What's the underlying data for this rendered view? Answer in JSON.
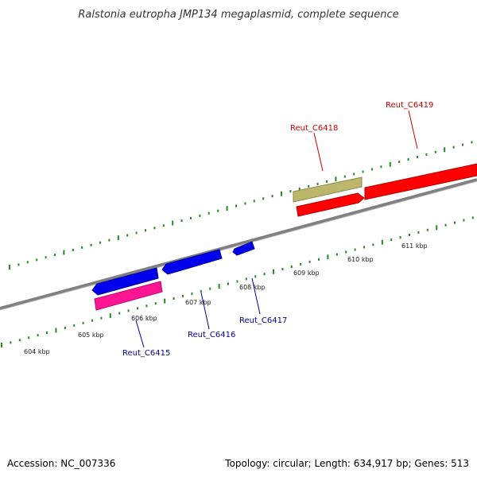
{
  "title": "Ralstonia eutropha JMP134 megaplasmid, complete sequence",
  "accession": "Accession: NC_007336",
  "summary": "Topology: circular; Length: 634,917 bp; Genes: 513",
  "colors": {
    "backbone": "#808080",
    "tick": "#228b22",
    "forward_label": "#cc0000",
    "reverse_label": "#000099",
    "blue_gene": "#0000ee",
    "red_gene": "#ff0000",
    "khaki_gene": "#bdb76b",
    "pink_gene": "#ff1493"
  },
  "tick_labels": [
    "604 kbp",
    "605 kbp",
    "606 kbp",
    "607 kbp",
    "608 kbp",
    "609 kbp",
    "610 kbp",
    "611 kbp"
  ],
  "genes": [
    {
      "label": "Reut_C6415",
      "strand": "reverse",
      "color": "blue"
    },
    {
      "label": "Reut_C6416",
      "strand": "reverse",
      "color": "blue"
    },
    {
      "label": "Reut_C6417",
      "strand": "reverse",
      "color": "blue"
    },
    {
      "label": "Reut_C6418",
      "strand": "forward",
      "color": "red"
    },
    {
      "label": "Reut_C6419",
      "strand": "forward",
      "color": "red"
    }
  ],
  "features": [
    {
      "name": "khaki-feature",
      "color": "khaki"
    },
    {
      "name": "pink-feature",
      "color": "pink"
    }
  ]
}
